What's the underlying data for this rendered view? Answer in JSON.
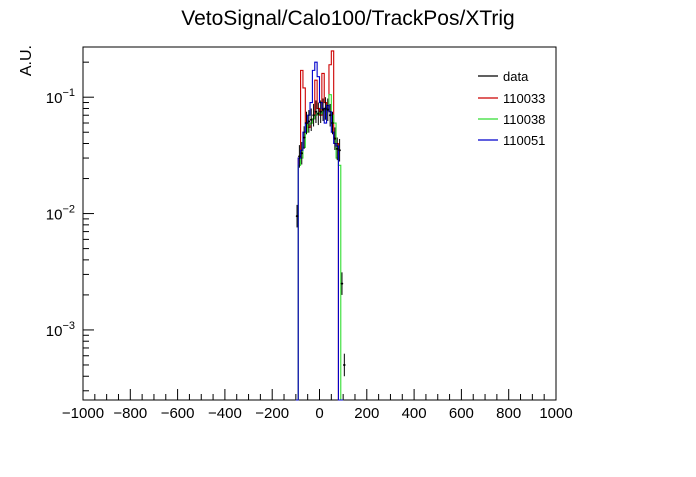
{
  "chart_data": {
    "type": "line",
    "title": "VetoSignal/Calo100/TrackPos/XTrig",
    "xlabel": "",
    "ylabel": "A.U.",
    "xlim": [
      -1000,
      1000
    ],
    "ylim": [
      0.00025,
      0.27
    ],
    "yscale": "log",
    "x_ticks": [
      -1000,
      -800,
      -600,
      -400,
      -200,
      0,
      200,
      400,
      600,
      800,
      1000
    ],
    "x_tick_labels": [
      "−1000",
      "−800",
      "−600",
      "−400",
      "−200",
      "0",
      "200",
      "400",
      "600",
      "800",
      "1000"
    ],
    "y_ticks": [
      0.001,
      0.01,
      0.1
    ],
    "y_tick_labels": [
      {
        "base": "10",
        "exp": "−3"
      },
      {
        "base": "10",
        "exp": "−2"
      },
      {
        "base": "10",
        "exp": "−1"
      }
    ],
    "grid": false,
    "legend_position": "top-right",
    "legend": [
      "data",
      "110033",
      "110038",
      "110051"
    ],
    "series": [
      {
        "name": "data",
        "kind": "points",
        "color": "#000000",
        "bin_width": 10,
        "x": [
          -95,
          -85,
          -75,
          -65,
          -55,
          -45,
          -35,
          -25,
          -15,
          -5,
          5,
          15,
          25,
          35,
          45,
          55,
          65,
          75,
          85,
          95,
          105
        ],
        "y": [
          0.0095,
          0.031,
          0.033,
          0.045,
          0.06,
          0.062,
          0.064,
          0.07,
          0.075,
          0.072,
          0.075,
          0.078,
          0.08,
          0.078,
          0.07,
          0.06,
          0.044,
          0.036,
          0.035,
          0.0025,
          0.0005
        ]
      },
      {
        "name": "110033",
        "kind": "step",
        "color": "#cc0000",
        "bin_width": 10,
        "x": [
          -95,
          -85,
          -75,
          -65,
          -55,
          -45,
          -35,
          -25,
          -15,
          -5,
          5,
          15,
          25,
          35,
          45,
          55,
          65,
          75,
          85,
          95
        ],
        "y": [
          0.0,
          0.03,
          0.17,
          0.12,
          0.06,
          0.055,
          0.06,
          0.065,
          0.14,
          0.08,
          0.07,
          0.16,
          0.09,
          0.08,
          0.19,
          0.25,
          0.045,
          0.04,
          0.0,
          0.0
        ]
      },
      {
        "name": "110038",
        "kind": "step",
        "color": "#33dd33",
        "bin_width": 10,
        "x": [
          -95,
          -85,
          -75,
          -65,
          -55,
          -45,
          -35,
          -25,
          -15,
          -5,
          5,
          15,
          25,
          35,
          45,
          55,
          65,
          75,
          85,
          95
        ],
        "y": [
          0.0,
          0.026,
          0.03,
          0.037,
          0.05,
          0.058,
          0.06,
          0.065,
          0.07,
          0.073,
          0.072,
          0.075,
          0.078,
          0.08,
          0.105,
          0.07,
          0.06,
          0.03,
          0.026,
          0.0
        ]
      },
      {
        "name": "110051",
        "kind": "step",
        "color": "#0000cc",
        "bin_width": 10,
        "x": [
          -95,
          -85,
          -75,
          -65,
          -55,
          -45,
          -35,
          -25,
          -15,
          -5,
          5,
          15,
          25,
          35,
          45,
          55,
          65,
          75,
          85,
          95
        ],
        "y": [
          0.0,
          0.03,
          0.035,
          0.05,
          0.06,
          0.07,
          0.09,
          0.17,
          0.2,
          0.15,
          0.09,
          0.08,
          0.06,
          0.085,
          0.075,
          0.05,
          0.04,
          0.038,
          0.0,
          0.0
        ]
      }
    ]
  }
}
